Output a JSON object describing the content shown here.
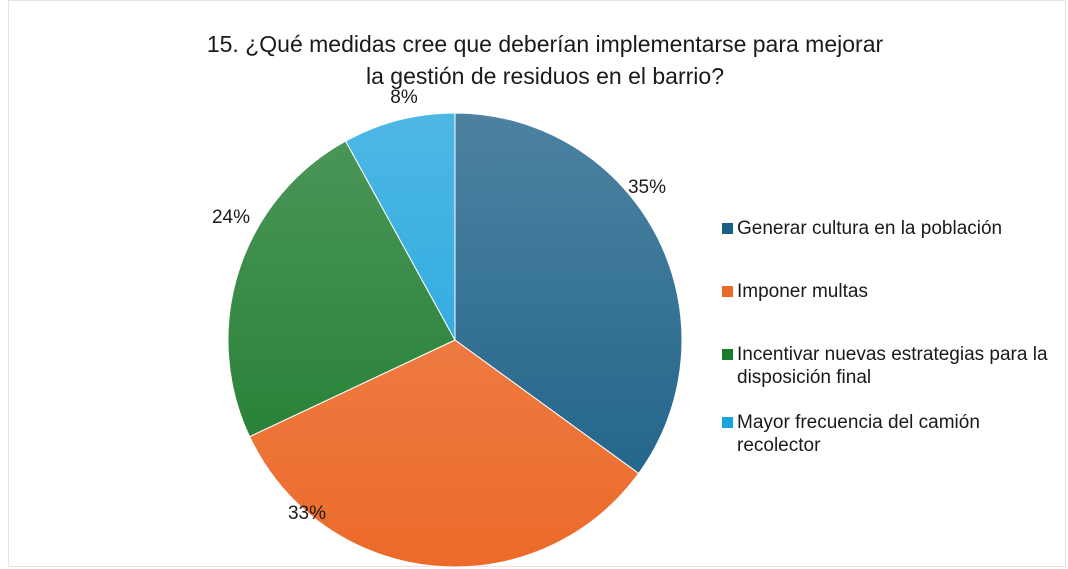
{
  "chart_data": {
    "type": "pie",
    "title": [
      "15. ¿Qué medidas cree que deberían implementarse para mejorar",
      "la gestión de residuos en el barrio?"
    ],
    "categories": [
      "Generar cultura en la población",
      "Imponer multas",
      "Incentivar nuevas estrategias para la disposición final",
      "Mayor frecuencia del camión recolector"
    ],
    "values": [
      35,
      33,
      24,
      8
    ],
    "value_labels": [
      "35%",
      "33%",
      "24%",
      "8%"
    ],
    "colors": [
      "#1a5f86",
      "#ec6a2a",
      "#1b7a2b",
      "#1ba3dd"
    ],
    "legend": "right"
  }
}
